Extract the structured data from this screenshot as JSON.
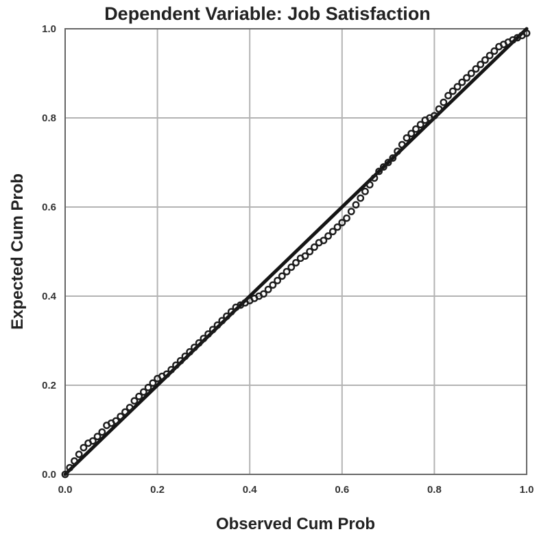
{
  "chart_data": {
    "type": "scatter",
    "title": "Dependent Variable: Job Satisfaction",
    "xlabel": "Observed Cum Prob",
    "ylabel": "Expected Cum Prob",
    "xlim": [
      0.0,
      1.0
    ],
    "ylim": [
      0.0,
      1.0
    ],
    "grid": true,
    "legend": "none",
    "x_ticks": [
      "0.0",
      "0.2",
      "0.4",
      "0.6",
      "0.8",
      "1.0"
    ],
    "y_ticks": [
      "0.0",
      "0.2",
      "0.4",
      "0.6",
      "0.8",
      "1.0"
    ],
    "reference_line": {
      "from": [
        0.0,
        0.0
      ],
      "to": [
        1.0,
        1.0
      ]
    },
    "series": [
      {
        "x": [
          0.0,
          0.01,
          0.02,
          0.03,
          0.04,
          0.05,
          0.06,
          0.07,
          0.08,
          0.09,
          0.1,
          0.11,
          0.12,
          0.13,
          0.14,
          0.15,
          0.16,
          0.17,
          0.18,
          0.19,
          0.2,
          0.21,
          0.22,
          0.23,
          0.24,
          0.25,
          0.26,
          0.27,
          0.28,
          0.29,
          0.3,
          0.31,
          0.32,
          0.33,
          0.34,
          0.35,
          0.36,
          0.37,
          0.38,
          0.39,
          0.4,
          0.41,
          0.42,
          0.43,
          0.44,
          0.45,
          0.46,
          0.47,
          0.48,
          0.49,
          0.5,
          0.51,
          0.52,
          0.53,
          0.54,
          0.55,
          0.56,
          0.57,
          0.58,
          0.59,
          0.6,
          0.61,
          0.62,
          0.63,
          0.64,
          0.65,
          0.66,
          0.67,
          0.68,
          0.69,
          0.7,
          0.71,
          0.72,
          0.73,
          0.74,
          0.75,
          0.76,
          0.77,
          0.78,
          0.79,
          0.8,
          0.81,
          0.82,
          0.83,
          0.84,
          0.85,
          0.86,
          0.87,
          0.88,
          0.89,
          0.9,
          0.91,
          0.92,
          0.93,
          0.94,
          0.95,
          0.96,
          0.97,
          0.98,
          0.99,
          1.0
        ],
        "y": [
          0.0,
          0.015,
          0.03,
          0.045,
          0.06,
          0.07,
          0.075,
          0.085,
          0.095,
          0.11,
          0.115,
          0.12,
          0.13,
          0.14,
          0.15,
          0.165,
          0.175,
          0.185,
          0.195,
          0.205,
          0.215,
          0.22,
          0.225,
          0.235,
          0.245,
          0.255,
          0.265,
          0.275,
          0.285,
          0.295,
          0.305,
          0.315,
          0.325,
          0.335,
          0.345,
          0.355,
          0.365,
          0.375,
          0.38,
          0.385,
          0.39,
          0.395,
          0.4,
          0.405,
          0.415,
          0.425,
          0.435,
          0.445,
          0.455,
          0.465,
          0.475,
          0.485,
          0.49,
          0.5,
          0.51,
          0.52,
          0.525,
          0.535,
          0.545,
          0.555,
          0.565,
          0.575,
          0.59,
          0.605,
          0.62,
          0.635,
          0.65,
          0.665,
          0.68,
          0.69,
          0.7,
          0.71,
          0.725,
          0.74,
          0.755,
          0.765,
          0.775,
          0.785,
          0.795,
          0.8,
          0.805,
          0.82,
          0.835,
          0.85,
          0.86,
          0.87,
          0.88,
          0.89,
          0.9,
          0.91,
          0.92,
          0.93,
          0.94,
          0.95,
          0.96,
          0.965,
          0.97,
          0.975,
          0.98,
          0.985,
          0.99
        ]
      }
    ]
  }
}
